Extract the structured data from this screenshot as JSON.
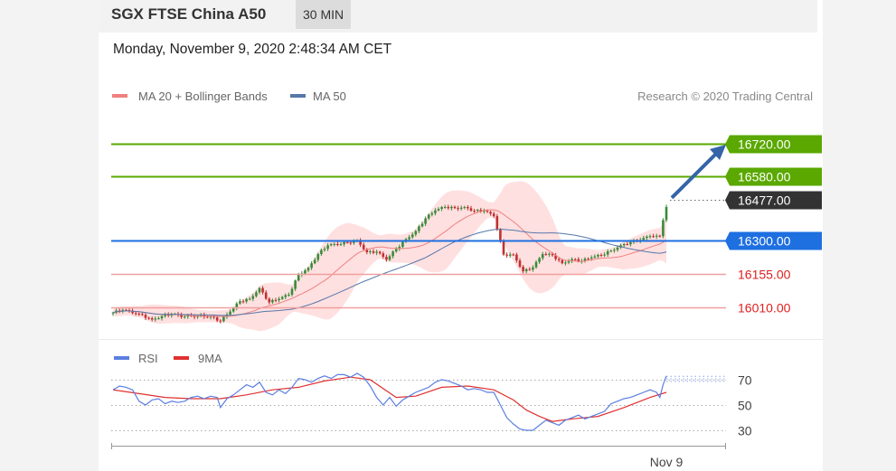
{
  "header": {
    "title": "SGX FTSE China A50",
    "timeframe": "30 MIN",
    "datetime": "Monday, November 9, 2020 2:48:34 AM CET"
  },
  "legend": {
    "ma20": "MA 20 + Bollinger Bands",
    "ma50": "MA 50",
    "credit": "Research © 2020 Trading Central"
  },
  "colors": {
    "green": "#5aa800",
    "blue": "#1e6fe0",
    "red": "#e02020",
    "dark": "#333333",
    "band_fill": "#ffd6d6",
    "ma20": "#f08080",
    "ma50": "#5577aa",
    "rsi": "#5b7fe0",
    "rsi_ma": "#e03030",
    "arrow": "#3565a8"
  },
  "chart_data": [
    {
      "type": "candlestick",
      "title": "",
      "ylim": [
        15890,
        16850
      ],
      "levels": [
        {
          "value": 16720.0,
          "label": "16720.00",
          "style": "green"
        },
        {
          "value": 16580.0,
          "label": "16580.00",
          "style": "green"
        },
        {
          "value": 16477.0,
          "label": "16477.00",
          "style": "dark"
        },
        {
          "value": 16300.0,
          "label": "16300.00",
          "style": "blue"
        },
        {
          "value": 16155.0,
          "label": "16155.00",
          "style": "red"
        },
        {
          "value": 16010.0,
          "label": "16010.00",
          "style": "red"
        }
      ],
      "anchors": [
        [
          0,
          15985
        ],
        [
          3,
          15997
        ],
        [
          8,
          15980
        ],
        [
          12,
          15955
        ],
        [
          15,
          15970
        ],
        [
          18,
          15978
        ],
        [
          22,
          15968
        ],
        [
          26,
          15972
        ],
        [
          30,
          15968
        ],
        [
          33,
          15948
        ],
        [
          36,
          15990
        ],
        [
          39,
          16035
        ],
        [
          42,
          16045
        ],
        [
          45,
          16092
        ],
        [
          48,
          16030
        ],
        [
          51,
          16045
        ],
        [
          54,
          16063
        ],
        [
          57,
          16150
        ],
        [
          60,
          16180
        ],
        [
          63,
          16240
        ],
        [
          66,
          16278
        ],
        [
          69,
          16282
        ],
        [
          72,
          16290
        ],
        [
          75,
          16300
        ],
        [
          78,
          16248
        ],
        [
          81,
          16250
        ],
        [
          84,
          16215
        ],
        [
          87,
          16262
        ],
        [
          90,
          16305
        ],
        [
          93,
          16340
        ],
        [
          96,
          16395
        ],
        [
          99,
          16430
        ],
        [
          102,
          16445
        ],
        [
          105,
          16440
        ],
        [
          108,
          16445
        ],
        [
          111,
          16428
        ],
        [
          114,
          16428
        ],
        [
          117,
          16405
        ],
        [
          120,
          16238
        ],
        [
          123,
          16238
        ],
        [
          126,
          16165
        ],
        [
          129,
          16182
        ],
        [
          132,
          16240
        ],
        [
          135,
          16235
        ],
        [
          138,
          16200
        ],
        [
          141,
          16218
        ],
        [
          144,
          16210
        ],
        [
          147,
          16225
        ],
        [
          150,
          16235
        ],
        [
          153,
          16255
        ],
        [
          156,
          16278
        ],
        [
          159,
          16292
        ],
        [
          162,
          16302
        ],
        [
          165,
          16318
        ],
        [
          167,
          16320
        ],
        [
          168,
          16318
        ],
        [
          169,
          16388
        ],
        [
          170,
          16445
        ]
      ],
      "x_tick_labels": [
        "Nov 9"
      ],
      "x_tick_index": 170
    },
    {
      "type": "line",
      "title": "",
      "ylim": [
        20,
        80
      ],
      "y_ticks": [
        70,
        50,
        30
      ],
      "series": [
        {
          "name": "RSI",
          "points": [
            [
              0,
              62
            ],
            [
              2,
              65
            ],
            [
              4,
              64
            ],
            [
              6,
              62
            ],
            [
              8,
              53
            ],
            [
              10,
              50
            ],
            [
              12,
              54
            ],
            [
              14,
              55
            ],
            [
              16,
              51
            ],
            [
              18,
              53
            ],
            [
              20,
              52
            ],
            [
              22,
              53
            ],
            [
              24,
              56
            ],
            [
              26,
              57
            ],
            [
              28,
              55
            ],
            [
              30,
              57
            ],
            [
              32,
              56
            ],
            [
              33,
              48
            ],
            [
              35,
              55
            ],
            [
              37,
              58
            ],
            [
              39,
              62
            ],
            [
              41,
              66
            ],
            [
              43,
              64
            ],
            [
              45,
              68
            ],
            [
              47,
              60
            ],
            [
              49,
              58
            ],
            [
              51,
              62
            ],
            [
              53,
              59
            ],
            [
              55,
              64
            ],
            [
              57,
              71
            ],
            [
              59,
              70
            ],
            [
              61,
              68
            ],
            [
              63,
              71
            ],
            [
              65,
              73
            ],
            [
              67,
              71
            ],
            [
              69,
              74
            ],
            [
              71,
              74
            ],
            [
              73,
              72
            ],
            [
              75,
              75
            ],
            [
              77,
              72
            ],
            [
              79,
              65
            ],
            [
              81,
              56
            ],
            [
              83,
              50
            ],
            [
              85,
              56
            ],
            [
              87,
              49
            ],
            [
              89,
              54
            ],
            [
              91,
              57
            ],
            [
              93,
              60
            ],
            [
              95,
              62
            ],
            [
              97,
              64
            ],
            [
              99,
              68
            ],
            [
              101,
              70
            ],
            [
              103,
              69
            ],
            [
              105,
              67
            ],
            [
              107,
              65
            ],
            [
              109,
              62
            ],
            [
              111,
              63
            ],
            [
              113,
              62
            ],
            [
              115,
              60
            ],
            [
              117,
              60
            ],
            [
              119,
              50
            ],
            [
              121,
              40
            ],
            [
              123,
              35
            ],
            [
              125,
              31
            ],
            [
              127,
              30
            ],
            [
              129,
              30
            ],
            [
              131,
              34
            ],
            [
              133,
              38
            ],
            [
              135,
              36
            ],
            [
              137,
              34
            ],
            [
              139,
              38
            ],
            [
              141,
              40
            ],
            [
              143,
              42
            ],
            [
              145,
              39
            ],
            [
              147,
              41
            ],
            [
              149,
              43
            ],
            [
              151,
              45
            ],
            [
              153,
              51
            ],
            [
              155,
              53
            ],
            [
              157,
              55
            ],
            [
              159,
              56
            ],
            [
              161,
              58
            ],
            [
              163,
              60
            ],
            [
              165,
              62
            ],
            [
              167,
              60
            ],
            [
              168,
              56
            ],
            [
              169,
              66
            ],
            [
              170,
              73
            ]
          ]
        },
        {
          "name": "9MA",
          "points": [
            [
              0,
              62
            ],
            [
              8,
              59
            ],
            [
              16,
              56
            ],
            [
              24,
              55
            ],
            [
              33,
              55
            ],
            [
              41,
              58
            ],
            [
              49,
              62
            ],
            [
              57,
              64
            ],
            [
              65,
              69
            ],
            [
              73,
              72
            ],
            [
              79,
              70
            ],
            [
              87,
              56
            ],
            [
              93,
              57
            ],
            [
              101,
              64
            ],
            [
              109,
              65
            ],
            [
              117,
              62
            ],
            [
              123,
              54
            ],
            [
              127,
              46
            ],
            [
              131,
              41
            ],
            [
              135,
              37
            ],
            [
              141,
              39
            ],
            [
              149,
              41
            ],
            [
              157,
              48
            ],
            [
              165,
              56
            ],
            [
              170,
              60
            ]
          ]
        }
      ],
      "x_tick_labels": [
        "Nov 9"
      ]
    }
  ]
}
